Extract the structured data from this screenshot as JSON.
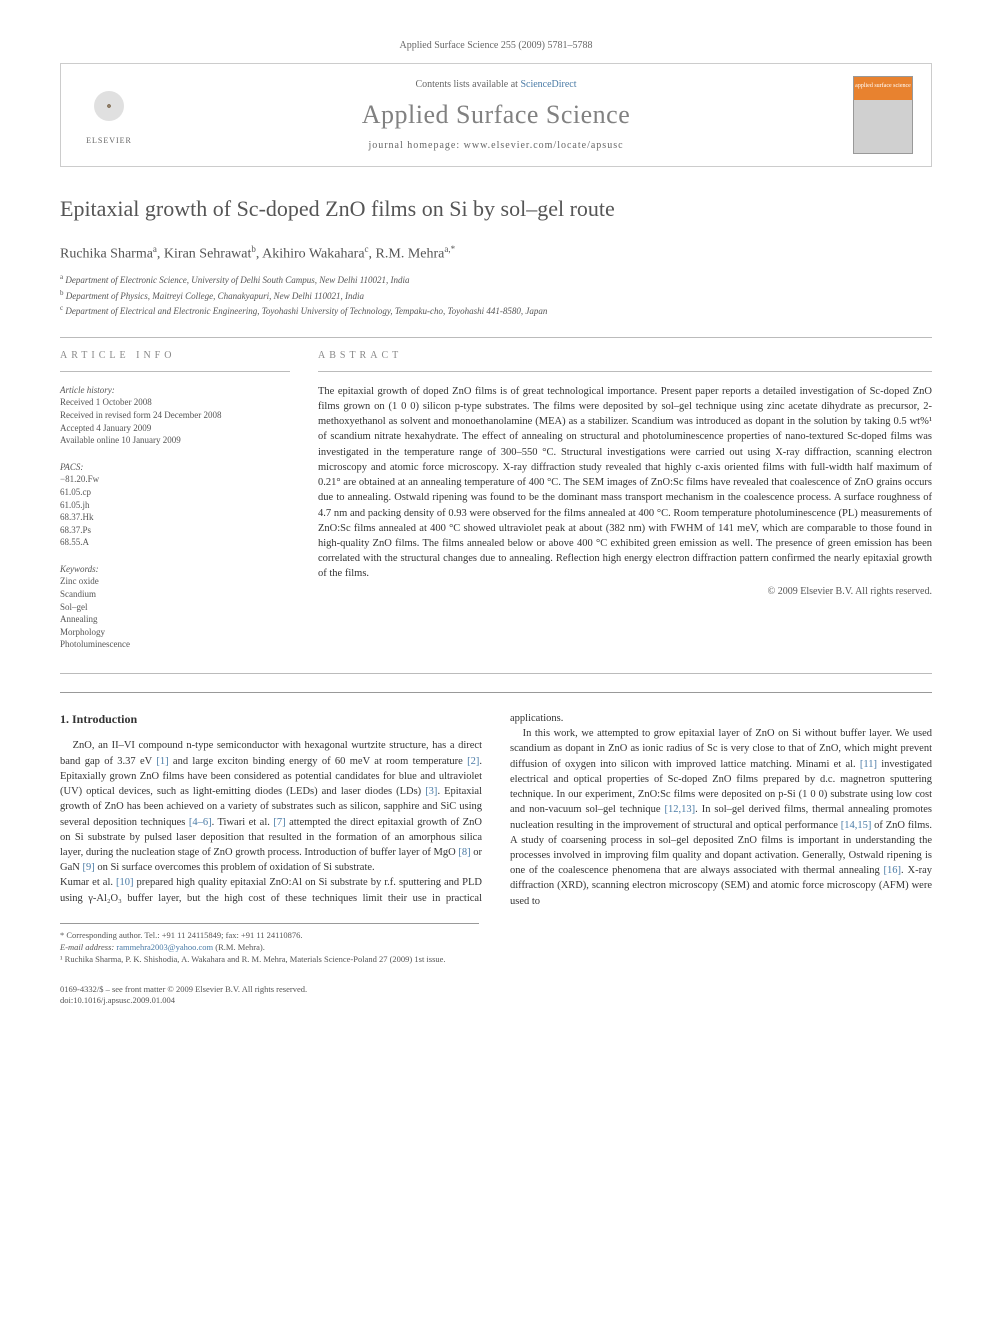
{
  "header_citation": "Applied Surface Science 255 (2009) 5781–5788",
  "topbox": {
    "elsevier": "ELSEVIER",
    "contents_prefix": "Contents lists available at ",
    "contents_link": "ScienceDirect",
    "journal": "Applied Surface Science",
    "homepage_prefix": "journal homepage: ",
    "homepage": "www.elsevier.com/locate/apsusc",
    "cover_text": "applied surface science"
  },
  "title": "Epitaxial growth of Sc-doped ZnO films on Si by sol–gel route",
  "authors_html": "Ruchika Sharma<span class='sup'>a</span>, Kiran Sehrawat<span class='sup'>b</span>, Akihiro Wakahara<span class='sup'>c</span>, R.M. Mehra<span class='sup'>a,</span><span class='sup star'>*</span>",
  "affiliations": [
    {
      "s": "a",
      "t": "Department of Electronic Science, University of Delhi South Campus, New Delhi 110021, India"
    },
    {
      "s": "b",
      "t": "Department of Physics, Maitreyi College, Chanakyapuri, New Delhi 110021, India"
    },
    {
      "s": "c",
      "t": "Department of Electrical and Electronic Engineering, Toyohashi University of Technology, Tempaku-cho, Toyohashi 441-8580, Japan"
    }
  ],
  "article_info_label": "ARTICLE INFO",
  "abstract_label": "ABSTRACT",
  "history_label": "Article history:",
  "history": [
    "Received 1 October 2008",
    "Received in revised form 24 December 2008",
    "Accepted 4 January 2009",
    "Available online 10 January 2009"
  ],
  "pacs_label": "PACS:",
  "pacs": [
    "−81.20.Fw",
    "61.05.cp",
    "61.05.jh",
    "68.37.Hk",
    "68.37.Ps",
    "68.55.A"
  ],
  "keywords_label": "Keywords:",
  "keywords": [
    "Zinc oxide",
    "Scandium",
    "Sol–gel",
    "Annealing",
    "Morphology",
    "Photoluminescence"
  ],
  "abstract": "The epitaxial growth of doped ZnO films is of great technological importance. Present paper reports a detailed investigation of Sc-doped ZnO films grown on (1 0 0) silicon p-type substrates. The films were deposited by sol–gel technique using zinc acetate dihydrate as precursor, 2-methoxyethanol as solvent and monoethanolamine (MEA) as a stabilizer. Scandium was introduced as dopant in the solution by taking 0.5 wt%¹ of scandium nitrate hexahydrate. The effect of annealing on structural and photoluminescence properties of nano-textured Sc-doped films was investigated in the temperature range of 300–550 °C. Structural investigations were carried out using X-ray diffraction, scanning electron microscopy and atomic force microscopy. X-ray diffraction study revealed that highly c-axis oriented films with full-width half maximum of 0.21° are obtained at an annealing temperature of 400 °C. The SEM images of ZnO:Sc films have revealed that coalescence of ZnO grains occurs due to annealing. Ostwald ripening was found to be the dominant mass transport mechanism in the coalescence process. A surface roughness of 4.7 nm and packing density of 0.93 were observed for the films annealed at 400 °C. Room temperature photoluminescence (PL) measurements of ZnO:Sc films annealed at 400 °C showed ultraviolet peak at about (382 nm) with FWHM of 141 meV, which are comparable to those found in high-quality ZnO films. The films annealed below or above 400 °C exhibited green emission as well. The presence of green emission has been correlated with the structural changes due to annealing. Reflection high energy electron diffraction pattern confirmed the nearly epitaxial growth of the films.",
  "copyright": "© 2009 Elsevier B.V. All rights reserved.",
  "intro_heading": "1. Introduction",
  "intro_p1": "ZnO, an II–VI compound n-type semiconductor with hexagonal wurtzite structure, has a direct band gap of 3.37 eV [1] and large exciton binding energy of 60 meV at room temperature [2]. Epitaxially grown ZnO films have been considered as potential candidates for blue and ultraviolet (UV) optical devices, such as light-emitting diodes (LEDs) and laser diodes (LDs) [3]. Epitaxial growth of ZnO has been achieved on a variety of substrates such as silicon, sapphire and SiC using several deposition techniques [4–6]. Tiwari et al. [7] attempted the direct epitaxial growth of ZnO on Si substrate by pulsed laser deposition that resulted in the formation of an amorphous silica layer, during the nucleation stage of ZnO growth process. Introduction of buffer layer of MgO [8] or GaN [9] on Si surface overcomes this problem of oxidation of Si substrate.",
  "intro_p2": "Kumar et al. [10] prepared high quality epitaxial ZnO:Al on Si substrate by r.f. sputtering and PLD using γ-Al₂O₃ buffer layer, but the high cost of these techniques limit their use in practical applications.",
  "intro_p3": "In this work, we attempted to grow epitaxial layer of ZnO on Si without buffer layer. We used scandium as dopant in ZnO as ionic radius of Sc is very close to that of ZnO, which might prevent diffusion of oxygen into silicon with improved lattice matching. Minami et al. [11] investigated electrical and optical properties of Sc-doped ZnO films prepared by d.c. magnetron sputtering technique. In our experiment, ZnO:Sc films were deposited on p-Si (1 0 0) substrate using low cost and non-vacuum sol–gel technique [12,13]. In sol–gel derived films, thermal annealing promotes nucleation resulting in the improvement of structural and optical performance [14,15] of ZnO films. A study of coarsening process in sol–gel deposited ZnO films is important in understanding the processes involved in improving film quality and dopant activation. Generally, Ostwald ripening is one of the coalescence phenomena that are always associated with thermal annealing [16]. X-ray diffraction (XRD), scanning electron microscopy (SEM) and atomic force microscopy (AFM) were used to",
  "footnote_corr": "* Corresponding author. Tel.: +91 11 24115849; fax: +91 11 24110876.",
  "footnote_email_label": "E-mail address: ",
  "footnote_email": "rammehra2003@yahoo.com",
  "footnote_email_tail": " (R.M. Mehra).",
  "footnote_1": "¹ Ruchika Sharma, P. K. Shishodia, A. Wakahara and R. M. Mehra, Materials Science-Poland 27 (2009) 1st issue.",
  "footer1": "0169-4332/$ – see front matter © 2009 Elsevier B.V. All rights reserved.",
  "footer2": "doi:10.1016/j.apsusc.2009.01.004"
}
